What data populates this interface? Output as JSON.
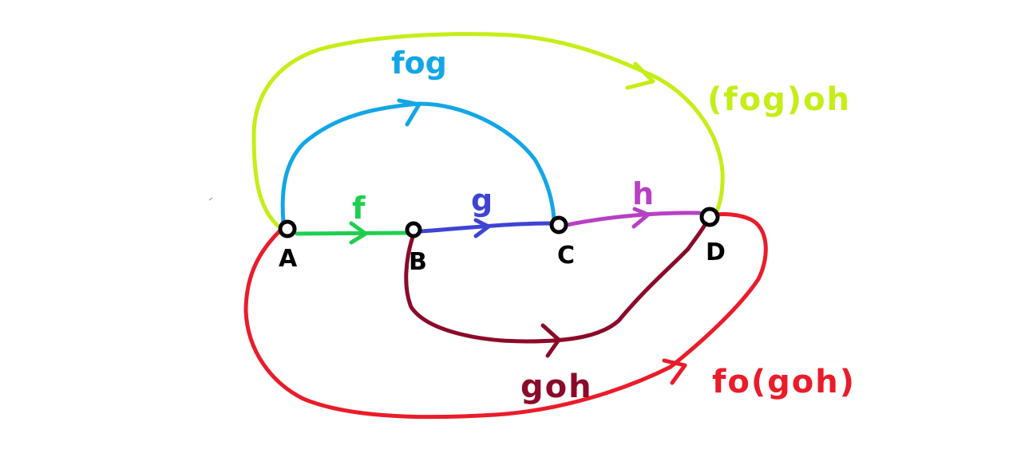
{
  "colors": {
    "f": "#1ecf4f",
    "g": "#3e44d4",
    "h": "#b840c4",
    "fog": "#12a6e6",
    "fog_h": "#c4ee16",
    "goh": "#8b0a2a",
    "f_goh": "#ea1c2a",
    "node": "#000000"
  },
  "nodes": {
    "a": "A",
    "b": "B",
    "c": "C",
    "d": "D"
  },
  "labels": {
    "f": "f",
    "g": "g",
    "h": "h",
    "fog": "fog",
    "fog_h": "(fog)oh",
    "goh": "goh",
    "f_goh": "fo(goh)"
  }
}
